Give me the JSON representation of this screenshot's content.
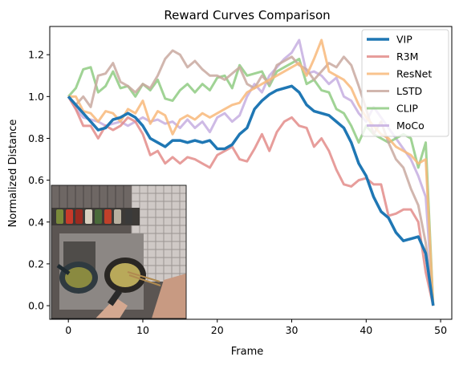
{
  "chart_data": {
    "type": "line",
    "title": "Reward Curves Comparison",
    "xlabel": "Frame",
    "ylabel": "Normalized Distance",
    "xlim": [
      -2.5,
      51.5
    ],
    "ylim": [
      -0.065,
      1.335
    ],
    "xticks": [
      0,
      10,
      20,
      30,
      40,
      50
    ],
    "yticks": [
      0.0,
      0.2,
      0.4,
      0.6,
      0.8,
      1.0,
      1.2
    ],
    "tick_labels_x": [
      "0",
      "10",
      "20",
      "30",
      "40",
      "50"
    ],
    "tick_labels_y": [
      "0.0",
      "0.2",
      "0.4",
      "0.6",
      "0.8",
      "1.0",
      "1.2"
    ],
    "grid": false,
    "legend_position": "top-right",
    "inset": "photo of cooking pots on a stove (first-person view)",
    "x": [
      0,
      1,
      2,
      3,
      4,
      5,
      6,
      7,
      8,
      9,
      10,
      11,
      12,
      13,
      14,
      15,
      16,
      17,
      18,
      19,
      20,
      21,
      22,
      23,
      24,
      25,
      26,
      27,
      28,
      29,
      30,
      31,
      32,
      33,
      34,
      35,
      36,
      37,
      38,
      39,
      40,
      41,
      42,
      43,
      44,
      45,
      46,
      47,
      48,
      49
    ],
    "series": [
      {
        "name": "MoCo",
        "color": "#c5aee0",
        "opacity": 0.85,
        "width": 3,
        "values": [
          1.0,
          0.94,
          0.9,
          0.89,
          0.88,
          0.86,
          0.87,
          0.88,
          0.86,
          0.88,
          0.9,
          0.88,
          0.89,
          0.87,
          0.88,
          0.85,
          0.89,
          0.85,
          0.88,
          0.83,
          0.9,
          0.92,
          0.88,
          0.91,
          1.0,
          1.06,
          1.02,
          1.1,
          1.14,
          1.18,
          1.21,
          1.27,
          1.11,
          1.12,
          1.1,
          1.06,
          1.09,
          1.0,
          0.98,
          0.92,
          0.88,
          0.95,
          0.9,
          0.85,
          0.8,
          0.75,
          0.7,
          0.62,
          0.52,
          0.0
        ]
      },
      {
        "name": "CLIP",
        "color": "#8fcb83",
        "opacity": 0.85,
        "width": 3,
        "values": [
          1.0,
          1.04,
          1.13,
          1.14,
          1.02,
          1.05,
          1.12,
          1.04,
          1.05,
          1.0,
          1.06,
          1.03,
          1.08,
          0.99,
          0.98,
          1.03,
          1.06,
          1.02,
          1.06,
          1.03,
          1.09,
          1.1,
          1.04,
          1.15,
          1.1,
          1.11,
          1.12,
          1.05,
          1.12,
          1.14,
          1.16,
          1.18,
          1.06,
          1.08,
          1.03,
          1.02,
          0.94,
          0.92,
          0.86,
          0.78,
          0.86,
          0.82,
          0.8,
          0.78,
          0.8,
          0.82,
          0.8,
          0.66,
          0.78,
          0.0
        ]
      },
      {
        "name": "LSTD",
        "color": "#c9a9a0",
        "opacity": 0.85,
        "width": 3,
        "values": [
          1.0,
          0.96,
          1.0,
          0.95,
          1.1,
          1.11,
          1.16,
          1.07,
          1.05,
          1.02,
          1.06,
          1.04,
          1.1,
          1.18,
          1.22,
          1.2,
          1.14,
          1.17,
          1.13,
          1.1,
          1.1,
          1.08,
          1.11,
          1.14,
          1.06,
          1.04,
          1.1,
          1.06,
          1.15,
          1.17,
          1.19,
          1.15,
          1.13,
          1.08,
          1.12,
          1.16,
          1.14,
          1.19,
          1.15,
          1.05,
          0.94,
          0.82,
          0.88,
          0.78,
          0.7,
          0.66,
          0.56,
          0.48,
          0.3,
          0.0
        ]
      },
      {
        "name": "ResNet",
        "color": "#f8b97a",
        "opacity": 0.85,
        "width": 3,
        "values": [
          1.0,
          1.0,
          0.93,
          0.92,
          0.88,
          0.93,
          0.92,
          0.88,
          0.94,
          0.92,
          0.98,
          0.87,
          0.93,
          0.91,
          0.82,
          0.89,
          0.91,
          0.89,
          0.92,
          0.9,
          0.92,
          0.94,
          0.96,
          0.97,
          1.02,
          1.04,
          1.06,
          1.08,
          1.1,
          1.12,
          1.14,
          1.16,
          1.1,
          1.18,
          1.27,
          1.12,
          1.1,
          1.08,
          1.04,
          0.96,
          0.9,
          0.86,
          0.82,
          0.8,
          0.76,
          0.74,
          0.72,
          0.68,
          0.7,
          0.0
        ]
      },
      {
        "name": "R3M",
        "color": "#e38c89",
        "opacity": 0.85,
        "width": 3,
        "values": [
          1.0,
          0.94,
          0.86,
          0.86,
          0.8,
          0.86,
          0.84,
          0.86,
          0.9,
          0.88,
          0.82,
          0.72,
          0.74,
          0.68,
          0.71,
          0.68,
          0.71,
          0.7,
          0.68,
          0.66,
          0.72,
          0.74,
          0.76,
          0.7,
          0.69,
          0.75,
          0.82,
          0.74,
          0.83,
          0.88,
          0.9,
          0.86,
          0.85,
          0.76,
          0.8,
          0.74,
          0.65,
          0.58,
          0.57,
          0.6,
          0.61,
          0.58,
          0.58,
          0.43,
          0.44,
          0.46,
          0.46,
          0.4,
          0.16,
          0.0
        ]
      },
      {
        "name": "VIP",
        "color": "#1f77b4",
        "opacity": 1.0,
        "width": 3.5,
        "values": [
          1.0,
          0.96,
          0.92,
          0.88,
          0.84,
          0.85,
          0.89,
          0.9,
          0.92,
          0.9,
          0.86,
          0.8,
          0.78,
          0.76,
          0.79,
          0.79,
          0.78,
          0.79,
          0.78,
          0.79,
          0.75,
          0.75,
          0.77,
          0.82,
          0.85,
          0.94,
          0.98,
          1.01,
          1.03,
          1.04,
          1.05,
          1.02,
          0.96,
          0.93,
          0.92,
          0.91,
          0.88,
          0.85,
          0.78,
          0.68,
          0.62,
          0.52,
          0.45,
          0.42,
          0.35,
          0.31,
          0.32,
          0.33,
          0.25,
          0.0
        ]
      }
    ],
    "legend_order": [
      "VIP",
      "R3M",
      "ResNet",
      "LSTD",
      "CLIP",
      "MoCo"
    ]
  }
}
